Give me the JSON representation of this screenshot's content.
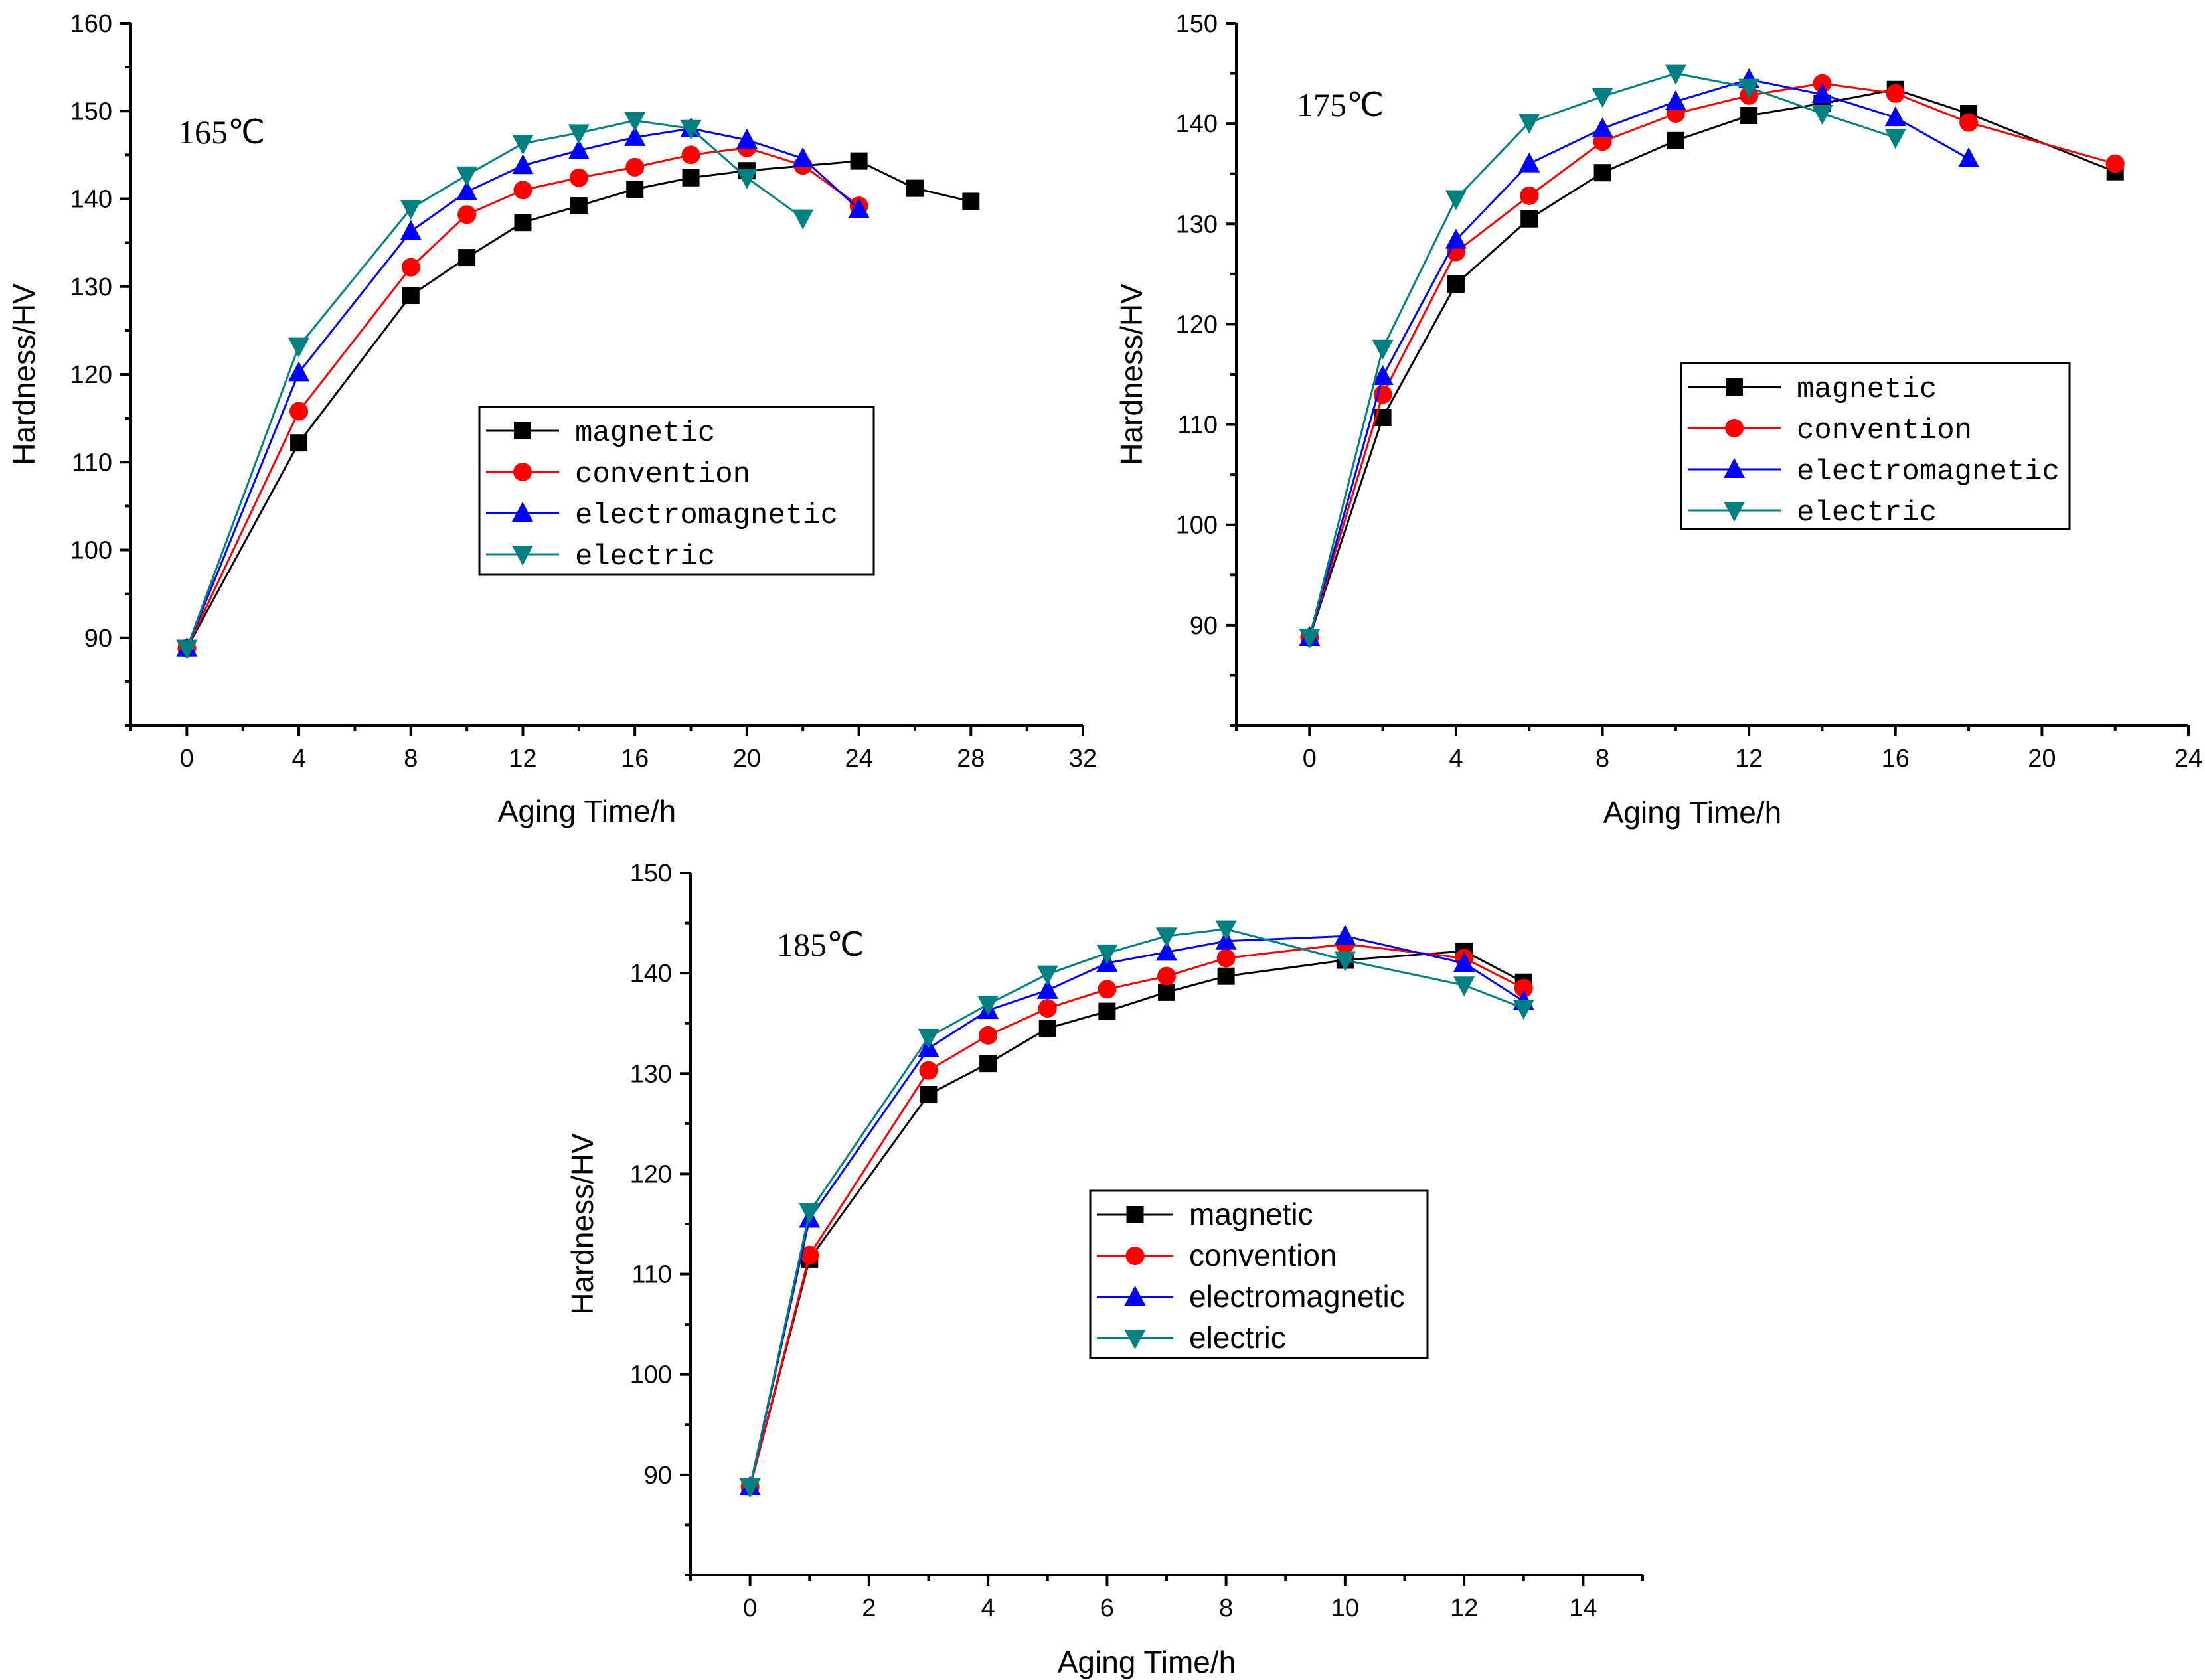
{
  "colors": {
    "magnetic": "#000000",
    "convention": "#ff0000",
    "electromagnetic": "#0000ff",
    "electric": "#008080"
  },
  "chart_data": [
    {
      "type": "line",
      "panel_label": "165℃",
      "xlabel": "Aging Time/h",
      "ylabel": "Hardness/HV",
      "xlim": [
        -2,
        32
      ],
      "ylim": [
        80,
        160
      ],
      "xticks": [
        0,
        4,
        8,
        12,
        16,
        20,
        24,
        28,
        32
      ],
      "yticks": [
        90,
        100,
        110,
        120,
        130,
        140,
        150,
        160
      ],
      "legend_position": "center",
      "series": [
        {
          "name": "magnetic",
          "color_key": "magnetic",
          "marker": "square",
          "x": [
            0,
            4,
            8,
            10,
            12,
            14,
            16,
            18,
            20,
            24,
            26,
            28
          ],
          "y": [
            88.8,
            112.2,
            129.0,
            133.3,
            137.3,
            139.2,
            141.1,
            142.4,
            143.2,
            144.3,
            141.2,
            139.7
          ]
        },
        {
          "name": "convention",
          "color_key": "convention",
          "marker": "circle",
          "x": [
            0,
            4,
            8,
            10,
            12,
            14,
            16,
            18,
            20,
            22,
            24
          ],
          "y": [
            88.8,
            115.8,
            132.2,
            138.2,
            141.0,
            142.4,
            143.6,
            145.0,
            145.8,
            143.8,
            139.2
          ]
        },
        {
          "name": "electromagnetic",
          "color_key": "electromagnetic",
          "marker": "triangle-up",
          "x": [
            0,
            4,
            8,
            10,
            12,
            14,
            16,
            18,
            20,
            22,
            24
          ],
          "y": [
            88.8,
            120.2,
            136.3,
            140.8,
            143.8,
            145.5,
            147.0,
            148.0,
            146.7,
            144.6,
            138.8
          ]
        },
        {
          "name": "electric",
          "color_key": "electric",
          "marker": "triangle-down",
          "x": [
            0,
            4,
            8,
            10,
            12,
            14,
            16,
            18,
            20,
            22
          ],
          "y": [
            88.8,
            123.2,
            138.9,
            142.7,
            146.3,
            147.5,
            148.9,
            148.0,
            142.4,
            137.8
          ]
        }
      ]
    },
    {
      "type": "line",
      "panel_label": "175℃",
      "xlabel": "Aging Time/h",
      "ylabel": "Hardness/HV",
      "xlim": [
        -2,
        24
      ],
      "ylim": [
        80,
        150
      ],
      "xticks": [
        0,
        4,
        8,
        12,
        16,
        20,
        24
      ],
      "yticks": [
        90,
        100,
        110,
        120,
        130,
        140,
        150
      ],
      "legend_position": "center-right",
      "series": [
        {
          "name": "magnetic",
          "color_key": "magnetic",
          "marker": "square",
          "x": [
            0,
            2,
            4,
            6,
            8,
            10,
            12,
            14,
            16,
            18,
            22
          ],
          "y": [
            88.8,
            110.7,
            124.0,
            130.5,
            135.1,
            138.3,
            140.8,
            142.0,
            143.4,
            141.0,
            135.2
          ]
        },
        {
          "name": "convention",
          "color_key": "convention",
          "marker": "circle",
          "x": [
            0,
            2,
            4,
            6,
            8,
            10,
            12,
            14,
            16,
            18,
            22
          ],
          "y": [
            88.8,
            113.0,
            127.2,
            132.8,
            138.2,
            141.0,
            142.8,
            144.0,
            143.0,
            140.1,
            136.0
          ]
        },
        {
          "name": "electromagnetic",
          "color_key": "electromagnetic",
          "marker": "triangle-up",
          "x": [
            0,
            2,
            4,
            6,
            8,
            10,
            12,
            14,
            16,
            18
          ],
          "y": [
            88.8,
            114.8,
            128.4,
            136.0,
            139.5,
            142.2,
            144.4,
            142.9,
            140.6,
            136.5
          ]
        },
        {
          "name": "electric",
          "color_key": "electric",
          "marker": "triangle-down",
          "x": [
            0,
            2,
            4,
            6,
            8,
            10,
            12,
            14,
            16
          ],
          "y": [
            88.8,
            117.6,
            132.5,
            140.1,
            142.7,
            145.0,
            143.6,
            141.0,
            138.6
          ]
        }
      ]
    },
    {
      "type": "line",
      "panel_label": "185℃",
      "xlabel": "Aging Time/h",
      "ylabel": "Hardness/HV",
      "xlim": [
        -1,
        15
      ],
      "ylim": [
        80,
        150
      ],
      "xticks": [
        0,
        2,
        4,
        6,
        8,
        10,
        12,
        14
      ],
      "yticks": [
        90,
        100,
        110,
        120,
        130,
        140,
        150
      ],
      "legend_position": "center-right",
      "series": [
        {
          "name": "magnetic",
          "color_key": "magnetic",
          "marker": "square",
          "x": [
            0,
            1,
            3,
            4,
            5,
            6,
            7,
            8,
            10,
            12,
            13
          ],
          "y": [
            88.8,
            111.5,
            127.9,
            131.0,
            134.5,
            136.2,
            138.1,
            139.7,
            141.3,
            142.2,
            139.1
          ]
        },
        {
          "name": "convention",
          "color_key": "convention",
          "marker": "circle",
          "x": [
            0,
            1,
            3,
            4,
            5,
            6,
            7,
            8,
            10,
            12,
            13
          ],
          "y": [
            88.8,
            111.9,
            130.3,
            133.8,
            136.5,
            138.4,
            139.7,
            141.5,
            142.9,
            141.5,
            138.5
          ]
        },
        {
          "name": "electromagnetic",
          "color_key": "electromagnetic",
          "marker": "triangle-up",
          "x": [
            0,
            1,
            3,
            4,
            5,
            6,
            7,
            8,
            10,
            12,
            13
          ],
          "y": [
            88.8,
            115.5,
            132.5,
            136.3,
            138.3,
            141.0,
            142.1,
            143.2,
            143.7,
            141.0,
            137.2
          ]
        },
        {
          "name": "electric",
          "color_key": "electric",
          "marker": "triangle-down",
          "x": [
            0,
            1,
            3,
            4,
            5,
            6,
            7,
            8,
            10,
            12,
            13
          ],
          "y": [
            88.8,
            116.2,
            133.6,
            136.9,
            139.9,
            142.0,
            143.7,
            144.4,
            141.3,
            138.8,
            136.5
          ]
        }
      ]
    }
  ]
}
